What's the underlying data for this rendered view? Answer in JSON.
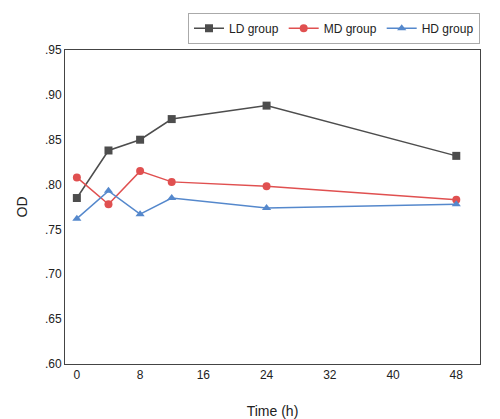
{
  "chart_data": {
    "type": "line",
    "x": [
      0,
      4,
      8,
      12,
      24,
      48
    ],
    "series": [
      {
        "name": "LD group",
        "color": "#4d4d4d",
        "marker": "square",
        "values": [
          0.785,
          0.838,
          0.85,
          0.873,
          0.888,
          0.832
        ]
      },
      {
        "name": "MD group",
        "color": "#e05050",
        "marker": "circle",
        "values": [
          0.808,
          0.778,
          0.815,
          0.803,
          0.798,
          0.783
        ]
      },
      {
        "name": "HD group",
        "color": "#5588cc",
        "marker": "triangle-up",
        "values": [
          0.762,
          0.793,
          0.767,
          0.785,
          0.774,
          0.778
        ]
      }
    ],
    "x_label": "Time (h)",
    "y_label": "OD",
    "xlim": [
      -1.5,
      51
    ],
    "ylim": [
      0.6,
      0.95
    ],
    "xticks": [
      0,
      8,
      16,
      24,
      32,
      40,
      48
    ],
    "yticks": [
      {
        "value": 0.6,
        "label": ".60"
      },
      {
        "value": 0.65,
        "label": ".65"
      },
      {
        "value": 0.7,
        "label": ".70"
      },
      {
        "value": 0.75,
        "label": ".75"
      },
      {
        "value": 0.8,
        "label": ".80"
      },
      {
        "value": 0.85,
        "label": ".85"
      },
      {
        "value": 0.9,
        "label": ".90"
      },
      {
        "value": 0.95,
        "label": ".95"
      }
    ],
    "legend": "upper right",
    "grid": false
  }
}
